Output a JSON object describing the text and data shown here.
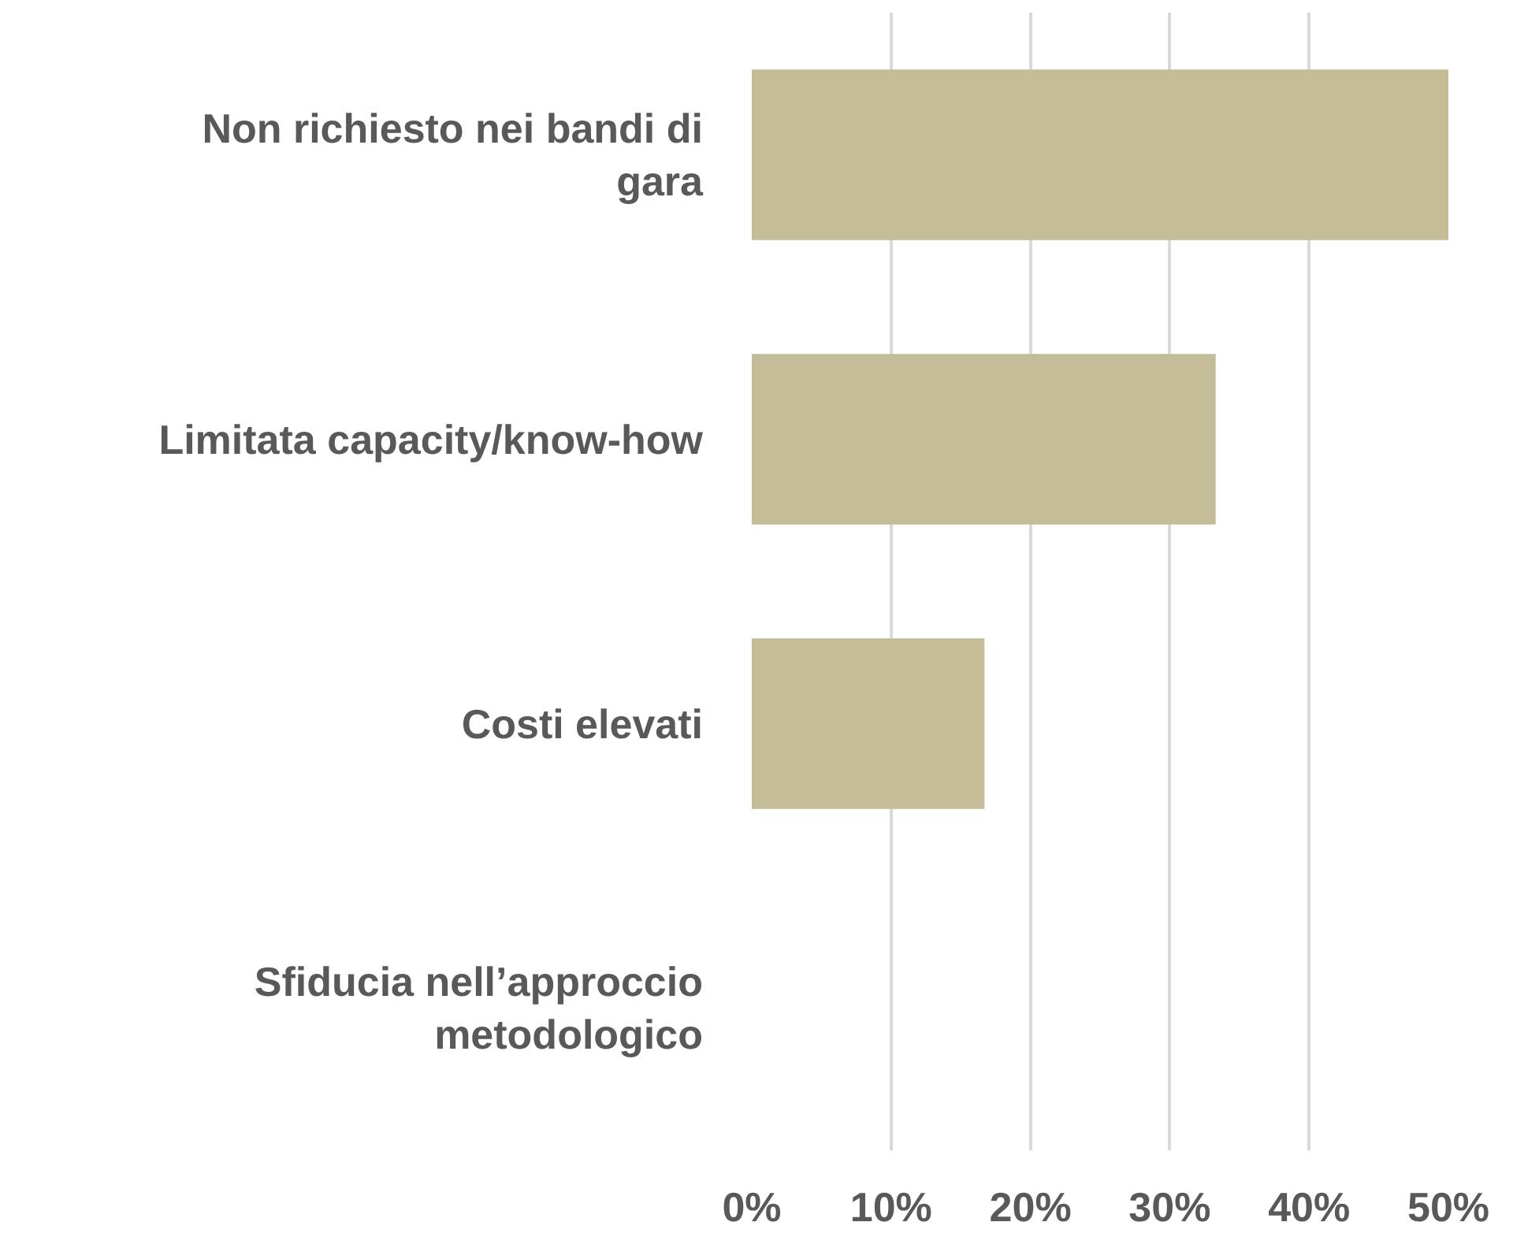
{
  "chart_data": {
    "type": "bar",
    "orientation": "horizontal",
    "categories": [
      "Non richiesto nei bandi di gara",
      "Limitata capacity/know-how",
      "Costi elevati",
      "Sfiducia nell’approccio metodologico"
    ],
    "values": [
      50,
      33.3,
      16.7,
      0
    ],
    "color": "#c4bc96",
    "xlim": [
      0,
      50
    ],
    "xticks": [
      {
        "value": 0,
        "label": "0%"
      },
      {
        "value": 10,
        "label": "10%"
      },
      {
        "value": 20,
        "label": "20%"
      },
      {
        "value": 30,
        "label": "30%"
      },
      {
        "value": 40,
        "label": "40%"
      },
      {
        "value": 50,
        "label": "50%"
      }
    ],
    "grid": "x"
  }
}
